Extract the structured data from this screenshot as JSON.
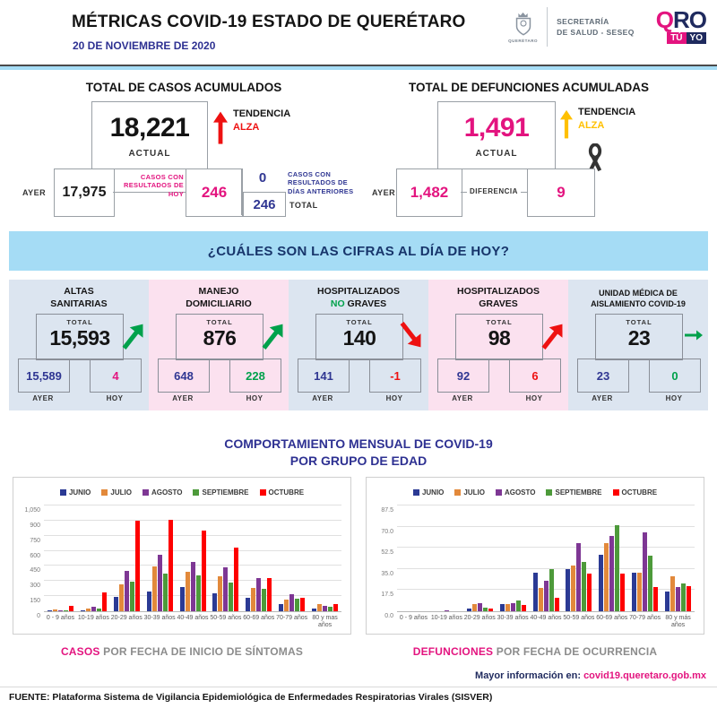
{
  "header": {
    "title": "MÉTRICAS COVID-19 ESTADO DE QUERÉTARO",
    "date": "20 DE NOVIEMBRE DE 2020",
    "crest_caption": "QUERÉTARO",
    "secretaria_line1": "SECRETARÍA",
    "secretaria_line2": "DE SALUD - SESEQ",
    "qro_q": "Q",
    "qro_ro": "RO",
    "qro_tu": "TÚ",
    "qro_yo": "YO"
  },
  "cases_panel": {
    "title": "TOTAL DE CASOS ACUMULADOS",
    "actual_value": "18,221",
    "actual_label": "ACTUAL",
    "ayer_label": "AYER",
    "ayer_value": "17,975",
    "hoy_note": "CASOS CON RESULTADOS DE HOY",
    "hoy_value": "246",
    "anteriores_value": "0",
    "anteriores_note": "CASOS CON RESULTADOS DE DÍAS ANTERIORES",
    "total_value": "246",
    "total_label": "TOTAL",
    "trend_label": "TENDENCIA",
    "trend_value": "ALZA"
  },
  "deaths_panel": {
    "title": "TOTAL DE DEFUNCIONES ACUMULADAS",
    "actual_value": "1,491",
    "actual_label": "ACTUAL",
    "ayer_label": "AYER",
    "ayer_value": "1,482",
    "diff_label": "DIFERENCIA",
    "diff_value": "9",
    "trend_label": "TENDENCIA",
    "trend_value": "ALZA"
  },
  "banner": {
    "text": "¿CUÁLES SON LAS CIFRAS AL DÍA DE HOY?"
  },
  "cards": [
    {
      "title1": "ALTAS",
      "title2_accent": "",
      "title2": "SANITARIAS",
      "total_label": "TOTAL",
      "total": "15,593",
      "ayer": "15,589",
      "hoy": "4",
      "ayer_label": "AYER",
      "hoy_label": "HOY"
    },
    {
      "title1": "MANEJO",
      "title2_accent": "",
      "title2": "DOMICILIARIO",
      "total_label": "TOTAL",
      "total": "876",
      "ayer": "648",
      "hoy": "228",
      "ayer_label": "AYER",
      "hoy_label": "HOY"
    },
    {
      "title1": "HOSPITALIZADOS",
      "title2_accent": "NO",
      "title2": "GRAVES",
      "total_label": "TOTAL",
      "total": "140",
      "ayer": "141",
      "hoy": "-1",
      "ayer_label": "AYER",
      "hoy_label": "HOY"
    },
    {
      "title1": "HOSPITALIZADOS",
      "title2_accent": "",
      "title2": "GRAVES",
      "total_label": "TOTAL",
      "total": "98",
      "ayer": "92",
      "hoy": "6",
      "ayer_label": "AYER",
      "hoy_label": "HOY"
    },
    {
      "title1": "UNIDAD MÉDICA DE",
      "title2_accent": "",
      "title2": "AISLAMIENTO COVID-19",
      "total_label": "TOTAL",
      "total": "23",
      "ayer": "23",
      "hoy": "0",
      "ayer_label": "AYER",
      "hoy_label": "HOY"
    }
  ],
  "charts_section": {
    "title_line1": "COMPORTAMIENTO MENSUAL DE COVID-19",
    "title_line2": "POR GRUPO DE EDAD",
    "caption_left_accent": "CASOS",
    "caption_left_rest": " POR FECHA DE INICIO DE SÍNTOMAS",
    "caption_right_accent": "DEFUNCIONES",
    "caption_right_rest": " POR FECHA DE OCURRENCIA"
  },
  "chart_data": [
    {
      "type": "bar",
      "title": "CASOS POR FECHA DE INICIO DE SÍNTOMAS",
      "categories": [
        "0 - 9 años",
        "10-19 años",
        "20-29 años",
        "30-39 años",
        "40-49 años",
        "50-59 años",
        "60-69 años",
        "70-79 años",
        "80 y mas años"
      ],
      "series": [
        {
          "name": "JUNIO",
          "color": "#2B3A94",
          "values": [
            5,
            10,
            140,
            195,
            240,
            180,
            135,
            70,
            30
          ]
        },
        {
          "name": "JULIO",
          "color": "#E2893B",
          "values": [
            18,
            25,
            270,
            445,
            395,
            350,
            230,
            115,
            68
          ]
        },
        {
          "name": "AGOSTO",
          "color": "#7E3794",
          "values": [
            12,
            45,
            400,
            560,
            490,
            440,
            330,
            170,
            50
          ]
        },
        {
          "name": "SEPTIEMBRE",
          "color": "#4D9A3A",
          "values": [
            12,
            30,
            295,
            370,
            360,
            285,
            225,
            123,
            46
          ]
        },
        {
          "name": "OCTUBRE",
          "color": "#FE0000",
          "values": [
            52,
            190,
            900,
            910,
            805,
            630,
            330,
            137,
            70
          ]
        }
      ],
      "ylim": [
        0,
        1050
      ],
      "yticks": [
        0,
        150,
        300,
        450,
        600,
        750,
        900,
        1050
      ],
      "ytick_labels": [
        "0",
        "150",
        "300",
        "450",
        "600",
        "750",
        "900",
        "1,050"
      ],
      "grid": true,
      "legend_position": "top",
      "xlabel": "",
      "ylabel": ""
    },
    {
      "type": "bar",
      "title": "DEFUNCIONES POR FECHA DE OCURRENCIA",
      "categories": [
        "0 - 9 años",
        "10-19 años",
        "20-29 años",
        "30-39 años",
        "40-49 años",
        "50-59 años",
        "60-69 años",
        "70-79 años",
        "80 y más años"
      ],
      "series": [
        {
          "name": "JUNIO",
          "color": "#2B3A94",
          "values": [
            0,
            0,
            2,
            6,
            32,
            35,
            47,
            32,
            16
          ]
        },
        {
          "name": "JULIO",
          "color": "#E2893B",
          "values": [
            0,
            0,
            6,
            6,
            19,
            38,
            56,
            32,
            29
          ]
        },
        {
          "name": "AGOSTO",
          "color": "#7E3794",
          "values": [
            0,
            1,
            7,
            7,
            25,
            56,
            62,
            65,
            20
          ]
        },
        {
          "name": "SEPTIEMBRE",
          "color": "#4D9A3A",
          "values": [
            0,
            0,
            3,
            9,
            35,
            41,
            71,
            46,
            23
          ]
        },
        {
          "name": "OCTUBRE",
          "color": "#FE0000",
          "values": [
            0,
            0,
            2,
            5,
            11,
            31,
            31,
            20,
            21
          ]
        }
      ],
      "ylim": [
        0,
        87.5
      ],
      "yticks": [
        0,
        17.5,
        35,
        52.5,
        70,
        87.5
      ],
      "ytick_labels": [
        "0.0",
        "17.5",
        "35.0",
        "52.5",
        "70.0",
        "87.5"
      ],
      "grid": true,
      "legend_position": "top",
      "xlabel": "",
      "ylabel": ""
    }
  ],
  "footer": {
    "info_label": "Mayor información en: ",
    "info_link": "covid19.queretaro.gob.mx",
    "source": "FUENTE: Plataforma Sistema  de Vigilancia Epidemiológica de Enfermedades Respiratorias Virales (SISVER)"
  },
  "colors": {
    "magenta": "#E3147F",
    "navy": "#1F2A5E",
    "royal_blue": "#2E3192",
    "banner_blue": "#A5DCF5",
    "card_blue": "#DCE5F0",
    "card_pink": "#FBE1EF",
    "green": "#00A14B",
    "red": "#EE1111",
    "yellow": "#FFC000"
  }
}
